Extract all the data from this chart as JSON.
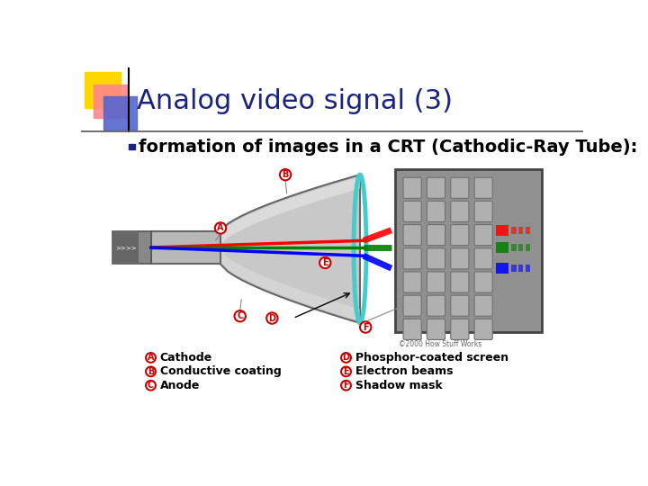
{
  "title": "Analog video signal (3)",
  "bullet_text": "formation of images in a CRT (Cathodic-Ray Tube):",
  "title_color": "#1a237e",
  "title_fontsize": 22,
  "bullet_fontsize": 14,
  "bullet_color": "#000000",
  "bg_color": "#ffffff",
  "accent_yellow": "#FFD700",
  "accent_red": "#FF8888",
  "accent_blue_dark": "#1a237e",
  "accent_blue_med": "#5566cc",
  "label_color": "#cc0000",
  "legend_items_left": [
    [
      "A",
      "Cathode"
    ],
    [
      "B",
      "Conductive coating"
    ],
    [
      "C",
      "Anode"
    ]
  ],
  "legend_items_right": [
    [
      "D",
      "Phosphor-coated screen"
    ],
    [
      "E",
      "Electron beams"
    ],
    [
      "F",
      "Shadow mask"
    ]
  ],
  "crt_tube_color": "#c0c0c0",
  "crt_neck_color": "#aaaaaa",
  "screen_bg_color": "#909090",
  "copyright": "©2000 How Stuff Works"
}
